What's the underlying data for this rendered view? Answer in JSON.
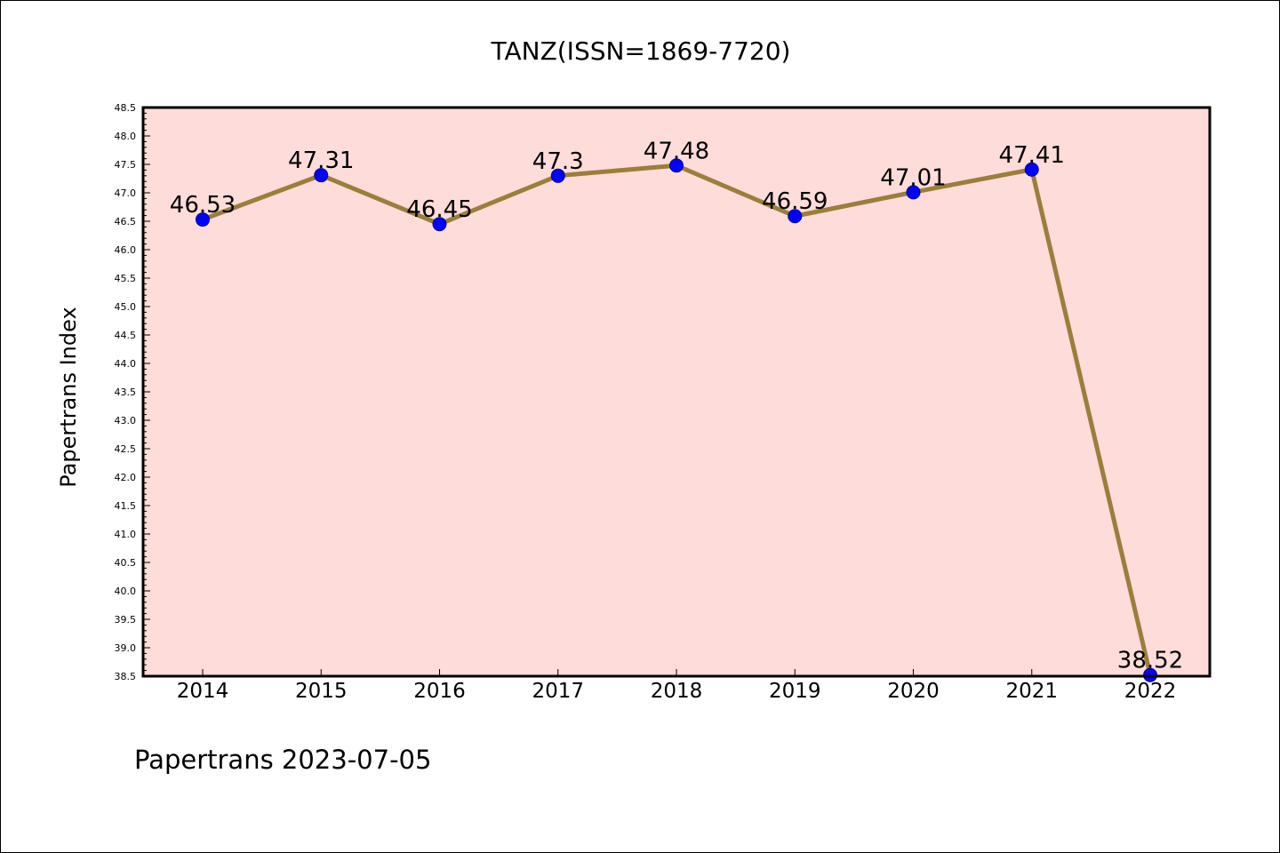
{
  "chart_data": {
    "type": "line",
    "title": "TANZ(ISSN=1869-7720)",
    "xlabel": "",
    "ylabel": "Papertrans Index",
    "categories": [
      "2014",
      "2015",
      "2016",
      "2017",
      "2018",
      "2019",
      "2020",
      "2021",
      "2022"
    ],
    "series": [
      {
        "values": [
          46.53,
          47.31,
          46.45,
          47.3,
          47.48,
          46.59,
          47.01,
          47.41,
          38.52
        ],
        "data_labels": [
          "46.53",
          "47.31",
          "46.45",
          "47.3",
          "47.48",
          "46.59",
          "47.01",
          "47.41",
          "38.52"
        ]
      }
    ],
    "ylim": [
      38.5,
      48.5
    ],
    "yticks": [
      "38.5",
      "39.0",
      "39.5",
      "40.0",
      "40.5",
      "41.0",
      "41.5",
      "42.0",
      "42.5",
      "43.0",
      "43.5",
      "44.0",
      "44.5",
      "45.0",
      "45.5",
      "46.0",
      "46.5",
      "47.0",
      "47.5",
      "48.0",
      "48.5"
    ],
    "grid": false,
    "legend": "none",
    "colors": {
      "plot_background": "#fddcd9",
      "line": "#9b7e3a",
      "marker": "#0000ff",
      "axis": "#000000"
    }
  },
  "footer": "Papertrans 2023-07-05"
}
